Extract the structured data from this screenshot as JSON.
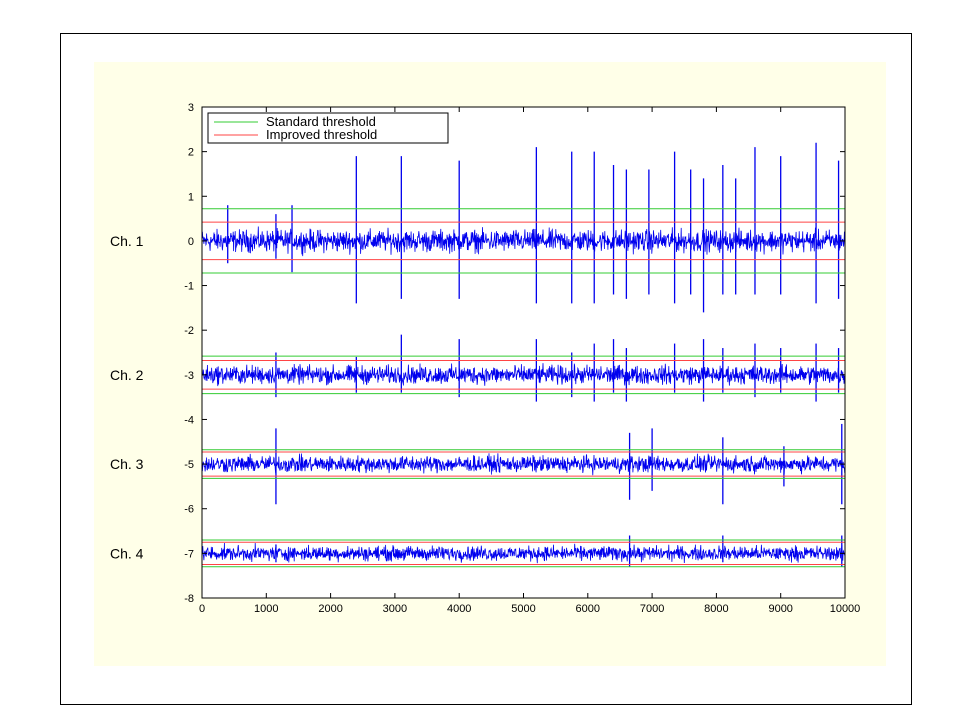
{
  "colors": {
    "background": "#ffffff",
    "frame": "#000000",
    "panel": "#FFFFE8",
    "plot_background": "#ffffff",
    "signal": "#0000EE",
    "standard_threshold": "#33CC33",
    "improved_threshold": "#FF4444"
  },
  "chart_data": {
    "type": "line",
    "title": "",
    "xlabel": "",
    "ylabel": "",
    "xlim": [
      0,
      10000
    ],
    "ylim": [
      -8,
      3
    ],
    "x_ticks": [
      0,
      1000,
      2000,
      3000,
      4000,
      5000,
      6000,
      7000,
      8000,
      9000,
      10000
    ],
    "y_ticks": [
      3,
      2,
      1,
      0,
      -1,
      -2,
      -3,
      -4,
      -5,
      -6,
      -7,
      -8
    ],
    "grid": false,
    "legend": {
      "position": "top-left",
      "entries": [
        {
          "label": "Standard threshold",
          "color": "#33CC33"
        },
        {
          "label": "Improved threshold",
          "color": "#FF4444"
        }
      ]
    },
    "series": [
      {
        "name": "Ch. 1",
        "offset": 0,
        "noise_amplitude": 0.12,
        "standard_threshold": 0.72,
        "improved_threshold": 0.42,
        "spikes": [
          {
            "x": 400,
            "up": 0.8,
            "down": -0.5
          },
          {
            "x": 1150,
            "up": 0.6,
            "down": -0.4
          },
          {
            "x": 1400,
            "up": 0.8,
            "down": -0.7
          },
          {
            "x": 2400,
            "up": 1.9,
            "down": -1.4
          },
          {
            "x": 3100,
            "up": 1.9,
            "down": -1.3
          },
          {
            "x": 4000,
            "up": 1.8,
            "down": -1.3
          },
          {
            "x": 5200,
            "up": 2.1,
            "down": -1.4
          },
          {
            "x": 5750,
            "up": 2.0,
            "down": -1.4
          },
          {
            "x": 6100,
            "up": 2.0,
            "down": -1.4
          },
          {
            "x": 6400,
            "up": 1.7,
            "down": -1.2
          },
          {
            "x": 6600,
            "up": 1.6,
            "down": -1.3
          },
          {
            "x": 6950,
            "up": 1.6,
            "down": -1.2
          },
          {
            "x": 7350,
            "up": 2.0,
            "down": -1.4
          },
          {
            "x": 7600,
            "up": 1.6,
            "down": -1.2
          },
          {
            "x": 7800,
            "up": 1.4,
            "down": -1.6
          },
          {
            "x": 8100,
            "up": 1.7,
            "down": -1.2
          },
          {
            "x": 8300,
            "up": 1.4,
            "down": -1.2
          },
          {
            "x": 8600,
            "up": 2.1,
            "down": -1.2
          },
          {
            "x": 9000,
            "up": 1.9,
            "down": -1.2
          },
          {
            "x": 9550,
            "up": 2.2,
            "down": -1.4
          },
          {
            "x": 9900,
            "up": 1.8,
            "down": -1.3
          }
        ]
      },
      {
        "name": "Ch. 2",
        "offset": -3,
        "noise_amplitude": 0.1,
        "standard_threshold": 0.42,
        "improved_threshold": 0.32,
        "spikes": [
          {
            "x": 1150,
            "up": -2.5,
            "down": -3.5
          },
          {
            "x": 2400,
            "up": -2.6,
            "down": -3.4
          },
          {
            "x": 3100,
            "up": -2.1,
            "down": -3.4
          },
          {
            "x": 4000,
            "up": -2.2,
            "down": -3.5
          },
          {
            "x": 5200,
            "up": -2.2,
            "down": -3.6
          },
          {
            "x": 5750,
            "up": -2.5,
            "down": -3.5
          },
          {
            "x": 6100,
            "up": -2.3,
            "down": -3.6
          },
          {
            "x": 6400,
            "up": -2.2,
            "down": -3.4
          },
          {
            "x": 6600,
            "up": -2.4,
            "down": -3.6
          },
          {
            "x": 7350,
            "up": -2.3,
            "down": -3.4
          },
          {
            "x": 7800,
            "up": -2.2,
            "down": -3.6
          },
          {
            "x": 8100,
            "up": -2.4,
            "down": -3.4
          },
          {
            "x": 8600,
            "up": -2.3,
            "down": -3.5
          },
          {
            "x": 9000,
            "up": -2.4,
            "down": -3.4
          },
          {
            "x": 9550,
            "up": -2.3,
            "down": -3.6
          },
          {
            "x": 9900,
            "up": -2.4,
            "down": -3.4
          }
        ]
      },
      {
        "name": "Ch. 3",
        "offset": -5,
        "noise_amplitude": 0.09,
        "standard_threshold": 0.32,
        "improved_threshold": 0.27,
        "spikes": [
          {
            "x": 1150,
            "up": -4.2,
            "down": -5.9
          },
          {
            "x": 6650,
            "up": -4.3,
            "down": -5.8
          },
          {
            "x": 7000,
            "up": -4.2,
            "down": -5.6
          },
          {
            "x": 8100,
            "up": -4.4,
            "down": -5.9
          },
          {
            "x": 9050,
            "up": -4.6,
            "down": -5.5
          },
          {
            "x": 9950,
            "up": -4.1,
            "down": -5.9
          }
        ]
      },
      {
        "name": "Ch. 4",
        "offset": -7,
        "noise_amplitude": 0.08,
        "standard_threshold": 0.3,
        "improved_threshold": 0.25,
        "spikes": [
          {
            "x": 1150,
            "up": -6.8,
            "down": -7.2
          },
          {
            "x": 6650,
            "up": -6.6,
            "down": -7.3
          },
          {
            "x": 8100,
            "up": -6.6,
            "down": -7.2
          },
          {
            "x": 9950,
            "up": -6.6,
            "down": -7.3
          }
        ]
      }
    ]
  }
}
